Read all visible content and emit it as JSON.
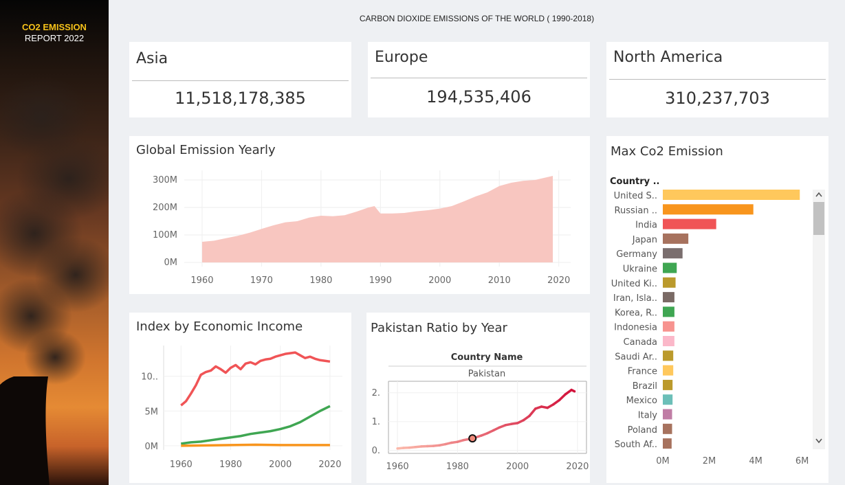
{
  "sidebar": {
    "title": "CO2 EMISSION",
    "subtitle": "REPORT 2022"
  },
  "dashboard_title": "CARBON DIOXIDE EMISSIONS OF THE WORLD ( 1990-2018)",
  "kpis": [
    {
      "label": "Asia",
      "value": "11,518,178,385"
    },
    {
      "label": "Europe",
      "value": "194,535,406"
    },
    {
      "label": "North America",
      "value": "310,237,703"
    }
  ],
  "colors": {
    "area": "#f8c6c0",
    "red": "#f05456",
    "green": "#3fa652",
    "orange": "#f8951d",
    "pak_light": "#fbb8aa",
    "pak_dark": "#d2113a"
  },
  "chart_data": [
    {
      "type": "area",
      "title": "Global Emission Yearly",
      "x": [
        1960,
        1962,
        1964,
        1966,
        1968,
        1970,
        1972,
        1974,
        1976,
        1978,
        1980,
        1982,
        1984,
        1986,
        1988,
        1989,
        1990,
        1992,
        1994,
        1996,
        1998,
        2000,
        2002,
        2004,
        2006,
        2008,
        2010,
        2012,
        2014,
        2016,
        2018,
        2019
      ],
      "values": [
        75,
        79,
        88,
        97,
        108,
        122,
        135,
        146,
        150,
        163,
        170,
        168,
        172,
        185,
        200,
        205,
        178,
        178,
        180,
        186,
        190,
        196,
        205,
        222,
        240,
        255,
        278,
        290,
        297,
        300,
        310,
        315
      ],
      "y_tick_labels": [
        "0M",
        "100M",
        "200M",
        "300M"
      ],
      "y_ticks": [
        0,
        100,
        200,
        300
      ],
      "x_ticks": [
        1960,
        1970,
        1980,
        1990,
        2000,
        2010,
        2020
      ],
      "xlim": [
        1957,
        2022
      ],
      "ylim": [
        -15,
        335
      ]
    },
    {
      "type": "line",
      "title": "Index by Economic Income",
      "x_ticks": [
        1960,
        1980,
        2000,
        2020
      ],
      "y_tick_labels": [
        "0M",
        "5M",
        "10.."
      ],
      "y_ticks": [
        0,
        5,
        10
      ],
      "xlim": [
        1953,
        2025
      ],
      "ylim": [
        -0.6,
        14.4
      ],
      "series": [
        {
          "x": [
            1960,
            1962,
            1964,
            1966,
            1968,
            1970,
            1972,
            1974,
            1976,
            1978,
            1980,
            1982,
            1984,
            1986,
            1988,
            1990,
            1992,
            1994,
            1996,
            1998,
            2000,
            2002,
            2004,
            2006,
            2008,
            2010,
            2012,
            2014,
            2016,
            2018,
            2020
          ],
          "values": [
            5.8,
            6.4,
            7.5,
            8.7,
            10.2,
            10.6,
            10.8,
            11.4,
            11.0,
            10.5,
            11.2,
            11.6,
            11.0,
            11.8,
            12.0,
            11.7,
            12.2,
            12.4,
            12.5,
            12.8,
            13.0,
            13.2,
            13.3,
            13.4,
            13.0,
            12.6,
            12.8,
            12.5,
            12.3,
            12.2,
            12.1
          ],
          "color_key": "red"
        },
        {
          "x": [
            1960,
            1964,
            1968,
            1972,
            1976,
            1980,
            1984,
            1988,
            1992,
            1996,
            2000,
            2004,
            2008,
            2012,
            2016,
            2020
          ],
          "values": [
            0.3,
            0.5,
            0.6,
            0.8,
            1.0,
            1.2,
            1.4,
            1.7,
            1.9,
            2.1,
            2.4,
            2.8,
            3.4,
            4.2,
            5.0,
            5.7
          ],
          "color_key": "green"
        },
        {
          "x": [
            1960,
            1970,
            1980,
            1990,
            2000,
            2010,
            2020
          ],
          "values": [
            0.0,
            0.05,
            0.1,
            0.15,
            0.1,
            0.1,
            0.1
          ],
          "color_key": "orange"
        }
      ]
    },
    {
      "type": "line",
      "title": "Pakistan Ratio by Year",
      "header": "Country Name",
      "facet": "Pakistan",
      "x": [
        1960,
        1962,
        1964,
        1966,
        1968,
        1970,
        1972,
        1974,
        1976,
        1978,
        1980,
        1982,
        1984,
        1986,
        1988,
        1990,
        1992,
        1994,
        1996,
        1998,
        2000,
        2002,
        2004,
        2006,
        2008,
        2010,
        2012,
        2014,
        2016,
        2018,
        2019
      ],
      "values": [
        0.07,
        0.09,
        0.1,
        0.12,
        0.14,
        0.15,
        0.16,
        0.18,
        0.22,
        0.27,
        0.3,
        0.36,
        0.4,
        0.45,
        0.52,
        0.6,
        0.7,
        0.8,
        0.88,
        0.92,
        0.95,
        1.05,
        1.2,
        1.45,
        1.52,
        1.48,
        1.6,
        1.75,
        1.95,
        2.1,
        2.05
      ],
      "highlight": {
        "x": 1985,
        "y": 0.42
      },
      "y_tick_labels": [
        "0.",
        "1.",
        "2."
      ],
      "y_ticks": [
        0,
        1,
        2
      ],
      "x_ticks": [
        1960,
        1980,
        2000,
        2020
      ],
      "xlim": [
        1957,
        2023
      ],
      "ylim": [
        -0.1,
        2.4
      ]
    },
    {
      "type": "bar",
      "title": "Max Co2 Emission",
      "column_header": "Country ..",
      "categories": [
        "United S..",
        "Russian ..",
        "India",
        "Japan",
        "Germany",
        "Ukraine",
        "United Ki..",
        "Iran, Isla..",
        "Korea, R..",
        "Indonesia",
        "Canada",
        "Saudi Ar..",
        "France",
        "Brazil",
        "Mexico",
        "Italy",
        "Poland",
        "South Af.."
      ],
      "values": [
        5.9,
        3.9,
        2.3,
        1.1,
        0.85,
        0.6,
        0.55,
        0.5,
        0.5,
        0.5,
        0.5,
        0.45,
        0.45,
        0.42,
        0.42,
        0.4,
        0.4,
        0.38
      ],
      "colors": [
        "#ffc85c",
        "#f8951d",
        "#f05456",
        "#a7725e",
        "#7a6e6e",
        "#3fa652",
        "#bb9a2c",
        "#7a6a65",
        "#3fa652",
        "#f7938f",
        "#fbb8c9",
        "#bb9a2c",
        "#ffc85c",
        "#bb9a2c",
        "#6cbfb8",
        "#c07da5",
        "#a7725e",
        "#a7725e"
      ],
      "x_tick_labels": [
        "0M",
        "2M",
        "4M",
        "6M"
      ],
      "x_ticks": [
        0,
        2,
        4,
        6
      ],
      "xlim": [
        0,
        6.1
      ]
    }
  ]
}
